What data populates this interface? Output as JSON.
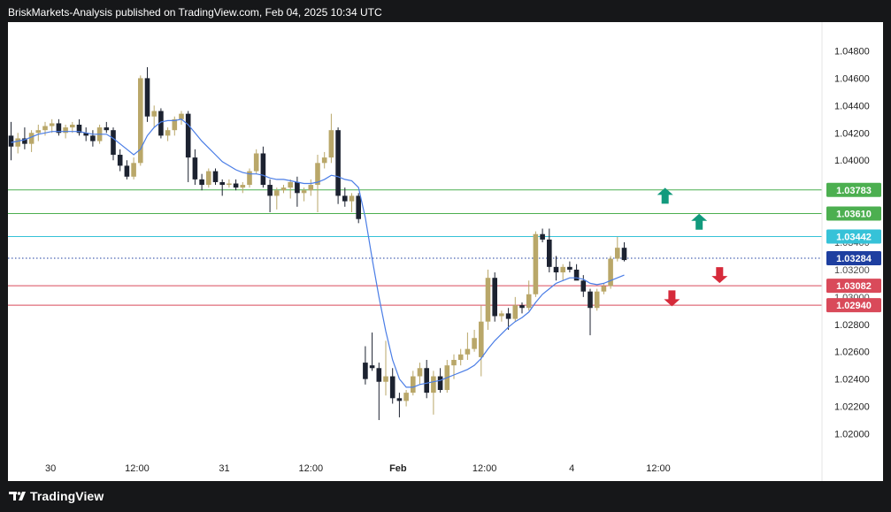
{
  "header": {
    "title": "BriskMarkets-Analysis published on TradingView.com, Feb 04, 2025 10:34 UTC"
  },
  "footer": {
    "brand": "TradingView"
  },
  "colors": {
    "bull": "#b9a769",
    "bear": "#1c2230",
    "ma": "#4a7de6",
    "green_line": "#4caf50",
    "cyan_line": "#36c2d8",
    "red_line": "#d94a5a",
    "dotted_line": "#1e3fa0",
    "up_arrow": "#129a7d",
    "down_arrow": "#d62a3a"
  },
  "chart_data": {
    "type": "candlestick",
    "title": "",
    "ylim": [
      1.0195,
      1.0495
    ],
    "y_ticks": [
      "1.04800",
      "1.04600",
      "1.04400",
      "1.04200",
      "1.04000",
      "1.02800",
      "1.02600",
      "1.02400",
      "1.02200",
      "1.02000"
    ],
    "hidden_ticks": [
      "1.03400",
      "1.03200",
      "1.03000"
    ],
    "x_ticks": [
      {
        "label": "30",
        "bar": 5.8,
        "bold": false
      },
      {
        "label": "12:00",
        "bar": 18.5,
        "bold": false
      },
      {
        "label": "31",
        "bar": 31.3,
        "bold": false
      },
      {
        "label": "12:00",
        "bar": 44,
        "bold": false
      },
      {
        "label": "Feb",
        "bar": 56.8,
        "bold": true
      },
      {
        "label": "12:00",
        "bar": 69.5,
        "bold": false
      },
      {
        "label": "4",
        "bar": 82.3,
        "bold": false
      },
      {
        "label": "12:00",
        "bar": 95,
        "bold": false
      }
    ],
    "levels": [
      {
        "value": 1.03783,
        "label": "1.03783",
        "color": "green_line",
        "style": "solid"
      },
      {
        "value": 1.0361,
        "label": "1.03610",
        "color": "green_line",
        "style": "solid"
      },
      {
        "value": 1.03442,
        "label": "1.03442",
        "color": "cyan_line",
        "style": "solid"
      },
      {
        "value": 1.03284,
        "label": "1.03284",
        "color": "dotted_line",
        "style": "dotted"
      },
      {
        "value": 1.03082,
        "label": "1.03082",
        "color": "red_line",
        "style": "solid"
      },
      {
        "value": 1.0294,
        "label": "1.02940",
        "color": "red_line",
        "style": "solid"
      }
    ],
    "arrows": [
      {
        "dir": "up",
        "bar": 96,
        "value": 1.0374
      },
      {
        "dir": "up",
        "bar": 101,
        "value": 1.0355
      },
      {
        "dir": "down",
        "bar": 104,
        "value": 1.0316
      },
      {
        "dir": "down",
        "bar": 97,
        "value": 1.0299
      }
    ],
    "candles": [
      [
        1.0418,
        1.0428,
        1.04,
        1.041
      ],
      [
        1.041,
        1.042,
        1.0405,
        1.0416
      ],
      [
        1.0416,
        1.0424,
        1.0408,
        1.0412
      ],
      [
        1.0412,
        1.0422,
        1.0406,
        1.042
      ],
      [
        1.042,
        1.0426,
        1.0414,
        1.0422
      ],
      [
        1.0422,
        1.0428,
        1.0418,
        1.0425
      ],
      [
        1.0425,
        1.043,
        1.042,
        1.0427
      ],
      [
        1.0427,
        1.043,
        1.0418,
        1.042
      ],
      [
        1.042,
        1.0426,
        1.0416,
        1.0424
      ],
      [
        1.0424,
        1.0428,
        1.042,
        1.0426
      ],
      [
        1.0426,
        1.043,
        1.0418,
        1.042
      ],
      [
        1.042,
        1.0424,
        1.0414,
        1.0418
      ],
      [
        1.0418,
        1.0422,
        1.041,
        1.0414
      ],
      [
        1.0414,
        1.0426,
        1.0412,
        1.0424
      ],
      [
        1.0424,
        1.0428,
        1.042,
        1.0422
      ],
      [
        1.0422,
        1.0424,
        1.04,
        1.0404
      ],
      [
        1.0404,
        1.0408,
        1.0392,
        1.0396
      ],
      [
        1.0396,
        1.04,
        1.0386,
        1.0388
      ],
      [
        1.0388,
        1.0402,
        1.0386,
        1.0398
      ],
      [
        1.0398,
        1.0462,
        1.0396,
        1.046
      ],
      [
        1.046,
        1.0468,
        1.0428,
        1.0432
      ],
      [
        1.0432,
        1.044,
        1.0424,
        1.0436
      ],
      [
        1.0436,
        1.0438,
        1.0416,
        1.0418
      ],
      [
        1.0418,
        1.0424,
        1.0414,
        1.0422
      ],
      [
        1.0422,
        1.0432,
        1.0418,
        1.043
      ],
      [
        1.043,
        1.0436,
        1.0426,
        1.0434
      ],
      [
        1.0434,
        1.0436,
        1.0384,
        1.0402
      ],
      [
        1.0402,
        1.0408,
        1.0382,
        1.0386
      ],
      [
        1.0386,
        1.039,
        1.0378,
        1.0382
      ],
      [
        1.0382,
        1.0394,
        1.038,
        1.0392
      ],
      [
        1.0392,
        1.0394,
        1.0382,
        1.0384
      ],
      [
        1.0384,
        1.0386,
        1.0374,
        1.0382
      ],
      [
        1.0382,
        1.0386,
        1.038,
        1.0383
      ],
      [
        1.0383,
        1.0386,
        1.0378,
        1.038
      ],
      [
        1.038,
        1.0384,
        1.0376,
        1.0382
      ],
      [
        1.0382,
        1.0394,
        1.038,
        1.0392
      ],
      [
        1.0392,
        1.0408,
        1.039,
        1.0405
      ],
      [
        1.0405,
        1.041,
        1.038,
        1.0382
      ],
      [
        1.0382,
        1.0386,
        1.0362,
        1.0374
      ],
      [
        1.0374,
        1.038,
        1.0364,
        1.0378
      ],
      [
        1.0378,
        1.0382,
        1.0376,
        1.038
      ],
      [
        1.038,
        1.0386,
        1.0372,
        1.0384
      ],
      [
        1.0384,
        1.0388,
        1.0366,
        1.0376
      ],
      [
        1.0376,
        1.038,
        1.037,
        1.0378
      ],
      [
        1.0378,
        1.0386,
        1.0374,
        1.0382
      ],
      [
        1.0382,
        1.0404,
        1.0362,
        1.0398
      ],
      [
        1.0398,
        1.0406,
        1.0394,
        1.0402
      ],
      [
        1.0402,
        1.0434,
        1.0398,
        1.0422
      ],
      [
        1.0422,
        1.0424,
        1.0368,
        1.0374
      ],
      [
        1.0374,
        1.038,
        1.0366,
        1.037
      ],
      [
        1.037,
        1.0376,
        1.0362,
        1.0374
      ],
      [
        1.0374,
        1.0376,
        1.0354,
        1.0357
      ],
      [
        1.0252,
        1.0264,
        1.0236,
        1.024
      ],
      [
        1.025,
        1.0274,
        1.0246,
        1.0248
      ],
      [
        1.0248,
        1.0252,
        1.021,
        1.0238
      ],
      [
        1.0238,
        1.0268,
        1.0228,
        1.0242
      ],
      [
        1.0242,
        1.0248,
        1.0222,
        1.0226
      ],
      [
        1.0226,
        1.023,
        1.0212,
        1.0224
      ],
      [
        1.0224,
        1.0232,
        1.022,
        1.023
      ],
      [
        1.023,
        1.0246,
        1.0228,
        1.0242
      ],
      [
        1.0242,
        1.0252,
        1.0236,
        1.0248
      ],
      [
        1.0248,
        1.0254,
        1.0226,
        1.023
      ],
      [
        1.023,
        1.0246,
        1.0214,
        1.0242
      ],
      [
        1.0242,
        1.0248,
        1.023,
        1.0232
      ],
      [
        1.0232,
        1.0254,
        1.023,
        1.025
      ],
      [
        1.025,
        1.0258,
        1.024,
        1.0254
      ],
      [
        1.0254,
        1.0262,
        1.025,
        1.0258
      ],
      [
        1.0258,
        1.0274,
        1.0254,
        1.0262
      ],
      [
        1.0262,
        1.0276,
        1.026,
        1.027
      ],
      [
        1.0256,
        1.0294,
        1.0242,
        1.0282
      ],
      [
        1.0282,
        1.032,
        1.0276,
        1.0314
      ],
      [
        1.0314,
        1.0318,
        1.0282,
        1.0286
      ],
      [
        1.0286,
        1.029,
        1.0282,
        1.0288
      ],
      [
        1.0288,
        1.0292,
        1.0276,
        1.0284
      ],
      [
        1.0284,
        1.03,
        1.0282,
        1.0294
      ],
      [
        1.0294,
        1.0296,
        1.0288,
        1.0292
      ],
      [
        1.0292,
        1.0312,
        1.029,
        1.0302
      ],
      [
        1.0302,
        1.0348,
        1.03,
        1.0346
      ],
      [
        1.0346,
        1.035,
        1.034,
        1.0342
      ],
      [
        1.0342,
        1.035,
        1.0318,
        1.0322
      ],
      [
        1.0322,
        1.033,
        1.0312,
        1.0318
      ],
      [
        1.0318,
        1.0324,
        1.0312,
        1.0322
      ],
      [
        1.0322,
        1.0326,
        1.0318,
        1.032
      ],
      [
        1.032,
        1.0324,
        1.0314,
        1.0312
      ],
      [
        1.0312,
        1.0316,
        1.03,
        1.0304
      ],
      [
        1.0304,
        1.0306,
        1.0272,
        1.0292
      ],
      [
        1.0292,
        1.0306,
        1.029,
        1.0304
      ],
      [
        1.0304,
        1.031,
        1.0302,
        1.0308
      ],
      [
        1.0308,
        1.033,
        1.0306,
        1.0328
      ],
      [
        1.0328,
        1.0344,
        1.0326,
        1.0336
      ],
      [
        1.0336,
        1.034,
        1.0326,
        1.0327
      ]
    ],
    "ma": [
      1.0413,
      1.0414,
      1.0415,
      1.0417,
      1.0419,
      1.042,
      1.0421,
      1.0421,
      1.0421,
      1.0421,
      1.0421,
      1.042,
      1.0419,
      1.0419,
      1.0419,
      1.0416,
      1.0412,
      1.0408,
      1.0404,
      1.0408,
      1.0418,
      1.0424,
      1.0428,
      1.0429,
      1.0429,
      1.043,
      1.0426,
      1.042,
      1.0414,
      1.0409,
      1.0404,
      1.0399,
      1.0396,
      1.0393,
      1.0391,
      1.039,
      1.039,
      1.0389,
      1.0387,
      1.0386,
      1.0386,
      1.0385,
      1.0384,
      1.0383,
      1.0383,
      1.0384,
      1.0386,
      1.0389,
      1.0388,
      1.0386,
      1.0385,
      1.038,
      1.0358,
      1.0328,
      1.03,
      1.0275,
      1.0254,
      1.024,
      1.0234,
      1.0234,
      1.0236,
      1.0237,
      1.0238,
      1.0239,
      1.0241,
      1.0243,
      1.0245,
      1.0247,
      1.025,
      1.0255,
      1.0262,
      1.0268,
      1.0273,
      1.0278,
      1.0282,
      1.0285,
      1.0289,
      1.0296,
      1.0302,
      1.0306,
      1.031,
      1.0312,
      1.0314,
      1.0314,
      1.0313,
      1.031,
      1.0309,
      1.031,
      1.0312,
      1.0314,
      1.0316
    ]
  }
}
